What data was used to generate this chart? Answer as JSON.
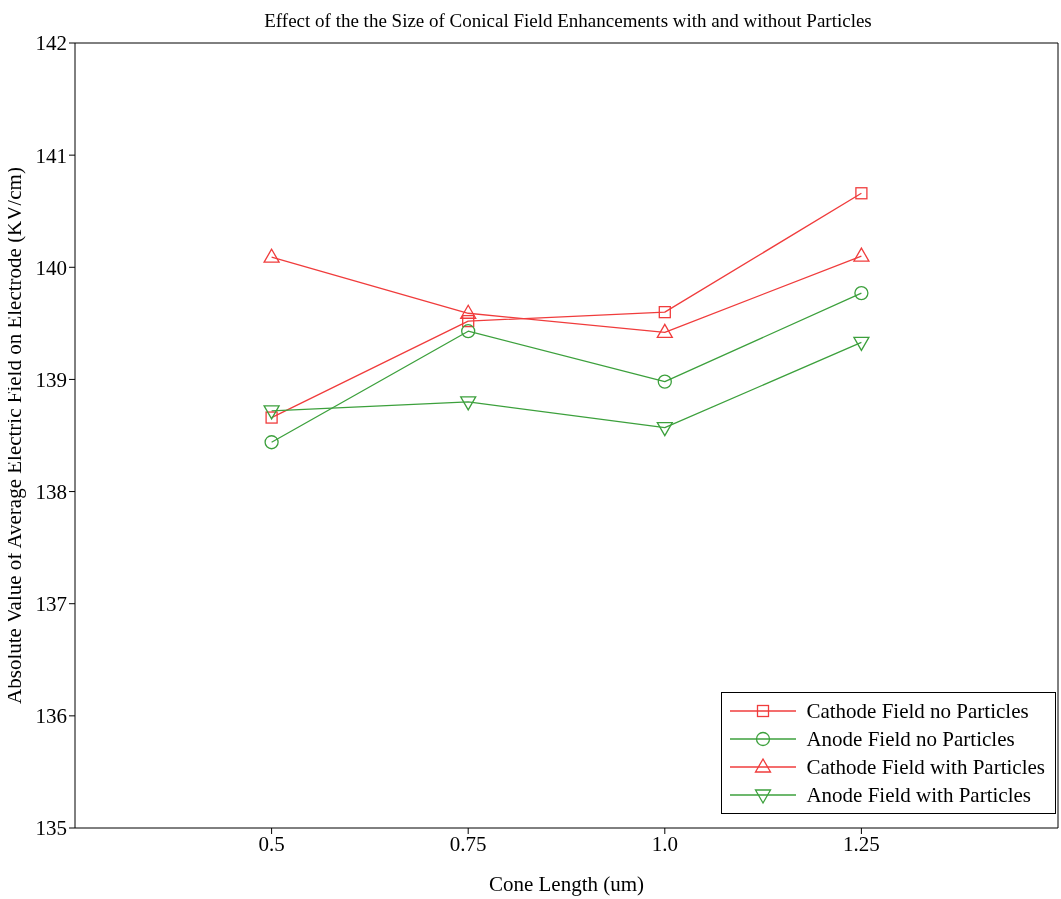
{
  "chart_data": {
    "type": "line",
    "title": "Effect of the the Size of Conical Field Enhancements with and without Particles",
    "xlabel": "Cone Length (um)",
    "ylabel": "Absolute Value of Average Electric Field on Electrode (KV/cm)",
    "x": [
      0.5,
      0.75,
      1.0,
      1.25
    ],
    "series": [
      {
        "name": "Cathode Field no Particles",
        "color": "#f03c3c",
        "marker": "square",
        "values": [
          138.66,
          139.52,
          139.6,
          140.66
        ]
      },
      {
        "name": "Anode Field no Particles",
        "color": "#3ca03c",
        "marker": "circle",
        "values": [
          138.44,
          139.43,
          138.98,
          139.77
        ]
      },
      {
        "name": "Cathode Field with Particles",
        "color": "#f03c3c",
        "marker": "triangle",
        "values": [
          140.09,
          139.59,
          139.42,
          140.1
        ]
      },
      {
        "name": "Anode Field with Particles",
        "color": "#3ca03c",
        "marker": "triangle-down",
        "values": [
          138.72,
          138.8,
          138.57,
          139.33
        ]
      }
    ],
    "xlim": [
      0.25,
      1.5
    ],
    "xticks": [
      0.5,
      0.75,
      {
        "value": 1,
        "label": "1.0"
      },
      1.25
    ],
    "ylim": [
      135,
      142
    ],
    "yticks": [
      135,
      136,
      137,
      138,
      139,
      140,
      141,
      142
    ],
    "legend": "bottom right",
    "line_style": "solid"
  }
}
